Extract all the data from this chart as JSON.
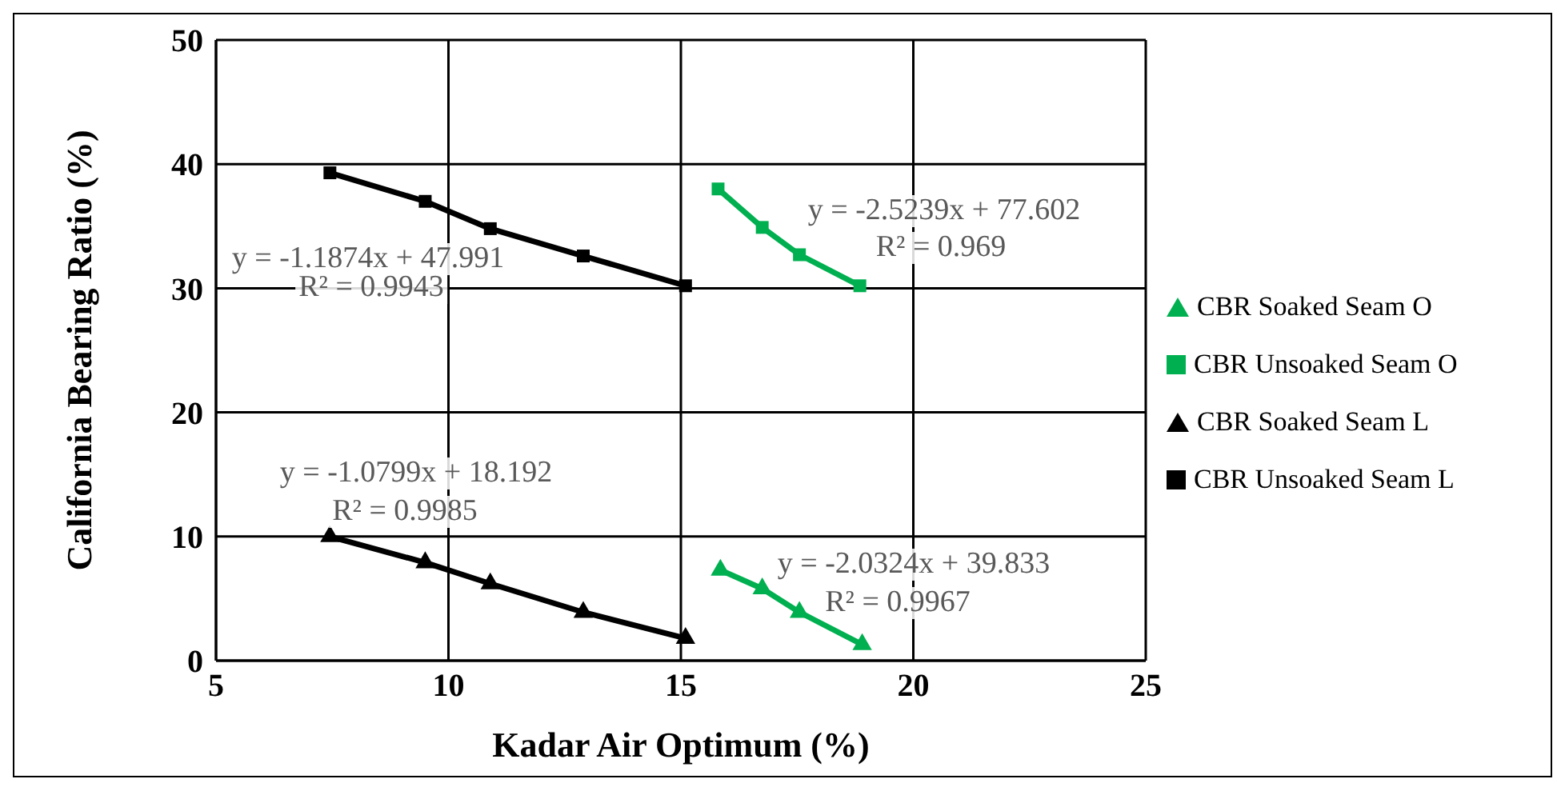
{
  "chart_data": {
    "type": "line",
    "xlabel": "Kadar Air Optimum (%)",
    "ylabel": "California Bearing Ratio (%)",
    "xlim": [
      5,
      25
    ],
    "xticks": [
      5,
      10,
      15,
      20,
      25
    ],
    "ylim": [
      0,
      50
    ],
    "yticks": [
      0,
      10,
      20,
      30,
      40,
      50
    ],
    "grid": true,
    "legend": "right",
    "line_style": "solid",
    "series": [
      {
        "name": "CBR Soaked Seam O",
        "color": "#00b050",
        "marker": "triangle",
        "x": [
          15.85,
          16.75,
          17.55,
          18.9
        ],
        "values": [
          7.3,
          5.8,
          3.9,
          1.3
        ]
      },
      {
        "name": "CBR Unsoaked Seam O",
        "color": "#00b050",
        "marker": "square",
        "x": [
          15.8,
          16.75,
          17.55,
          18.85
        ],
        "values": [
          38.0,
          34.9,
          32.7,
          30.2
        ]
      },
      {
        "name": "CBR Soaked Seam L",
        "color": "#000000",
        "marker": "triangle",
        "x": [
          7.45,
          9.5,
          10.9,
          12.9,
          15.1
        ],
        "values": [
          10.0,
          7.9,
          6.2,
          3.9,
          1.8
        ]
      },
      {
        "name": "CBR Unsoaked Seam L",
        "color": "#000000",
        "marker": "square",
        "x": [
          7.45,
          9.5,
          10.9,
          12.9,
          15.1
        ],
        "values": [
          39.3,
          37.0,
          34.8,
          32.6,
          30.2
        ]
      }
    ],
    "annotations": [
      "y = -1.1874x + 47.991",
      "R² = 0.9943",
      "y = -2.5239x + 77.602",
      "R² = 0.969",
      "y = -1.0799x + 18.192",
      "R² = 0.9985",
      "y = -2.0324x + 39.833",
      "R² = 0.9967"
    ]
  }
}
